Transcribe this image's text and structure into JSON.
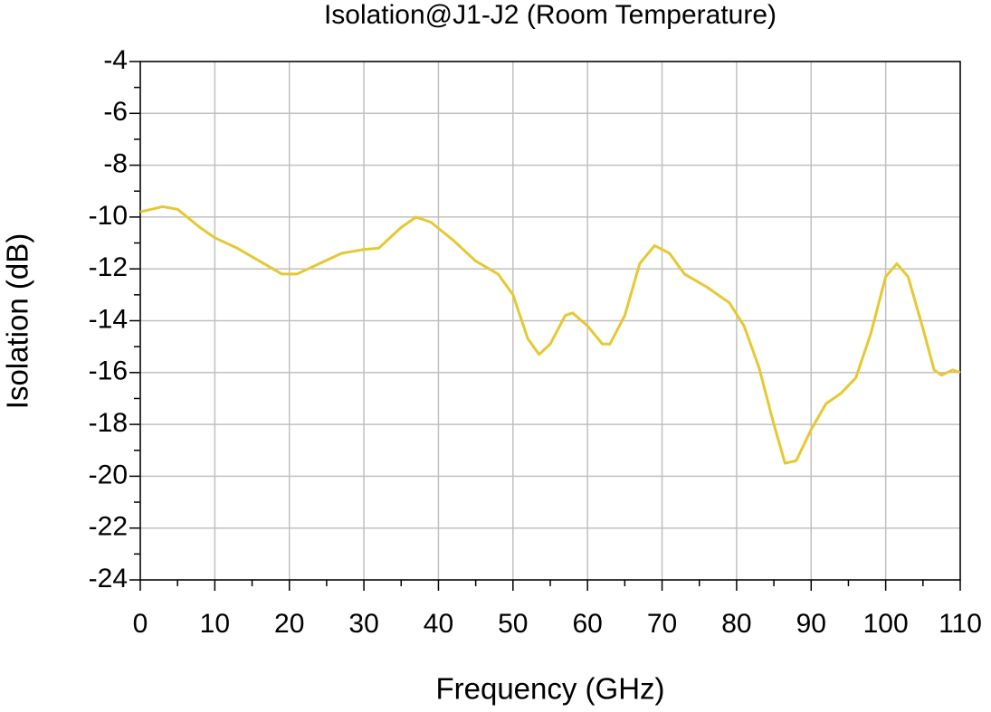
{
  "chart_data": {
    "type": "line",
    "title": "Isolation@J1-J2 (Room Temperature)",
    "x_label": "Frequency (GHz)",
    "y_label": "Isolation (dB)",
    "xlim": [
      0,
      110
    ],
    "xticks": [
      0,
      10,
      20,
      30,
      40,
      50,
      60,
      70,
      80,
      90,
      100,
      110
    ],
    "ylim": [
      -24,
      -4
    ],
    "yticks": [
      -24,
      -22,
      -20,
      -18,
      -16,
      -14,
      -12,
      -10,
      -8,
      -6,
      -4
    ],
    "grid": true,
    "series": [
      {
        "color": "#e6c832",
        "x": [
          0,
          3,
          5,
          8,
          10,
          13,
          16,
          19,
          21,
          24,
          27,
          30,
          32,
          35,
          37,
          39,
          42,
          45,
          48,
          50,
          52,
          53.5,
          55,
          57,
          58,
          60,
          62,
          63,
          65,
          67,
          69,
          71,
          73,
          76,
          79,
          81,
          83,
          85,
          86.5,
          88,
          90,
          92,
          94,
          96,
          98,
          100,
          101.5,
          103,
          105,
          106.5,
          107.5,
          109,
          110
        ],
        "values": [
          -9.8,
          -9.6,
          -9.7,
          -10.4,
          -10.8,
          -11.2,
          -11.7,
          -12.2,
          -12.2,
          -11.8,
          -11.4,
          -11.25,
          -11.2,
          -10.4,
          -10.0,
          -10.2,
          -10.9,
          -11.7,
          -12.2,
          -13.0,
          -14.7,
          -15.3,
          -14.9,
          -13.8,
          -13.7,
          -14.2,
          -14.9,
          -14.9,
          -13.8,
          -11.8,
          -11.1,
          -11.4,
          -12.2,
          -12.7,
          -13.3,
          -14.2,
          -15.8,
          -18.0,
          -19.5,
          -19.4,
          -18.2,
          -17.2,
          -16.8,
          -16.2,
          -14.5,
          -12.3,
          -11.8,
          -12.3,
          -14.3,
          -15.9,
          -16.1,
          -15.9,
          -16.0
        ]
      }
    ]
  }
}
